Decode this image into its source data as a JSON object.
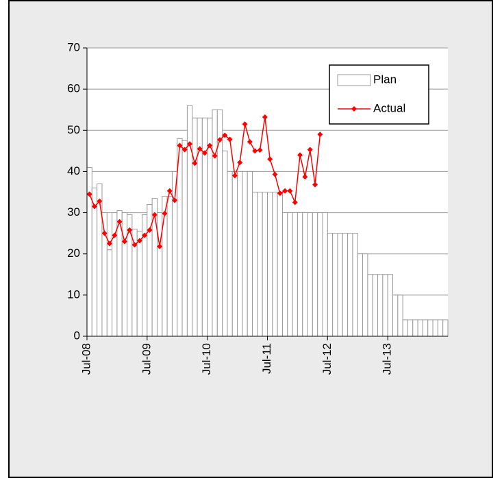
{
  "chart_data": {
    "type": "bar_line",
    "categories": [
      "Jul-08",
      null,
      null,
      null,
      null,
      null,
      null,
      null,
      null,
      null,
      null,
      null,
      "Jul-09",
      null,
      null,
      null,
      null,
      null,
      null,
      null,
      null,
      null,
      null,
      null,
      "Jul-10",
      null,
      null,
      null,
      null,
      null,
      null,
      null,
      null,
      null,
      null,
      null,
      "Jul-11",
      null,
      null,
      null,
      null,
      null,
      null,
      null,
      null,
      null,
      null,
      null,
      "Jul-12",
      null,
      null,
      null,
      null,
      null,
      null,
      null,
      null,
      null,
      null,
      null,
      "Jul-13",
      null,
      null,
      null,
      null,
      null,
      null,
      null,
      null,
      null,
      null,
      null
    ],
    "series": [
      {
        "name": "Plan",
        "type": "bar",
        "color": "#999999",
        "values": [
          41,
          36,
          37,
          30,
          21,
          30,
          30.5,
          30,
          29.5,
          26,
          25.5,
          29.5,
          32,
          33.5,
          30,
          34,
          34,
          40,
          48,
          47.5,
          56,
          53,
          53,
          53,
          53,
          55,
          55,
          45,
          40,
          40,
          40,
          40,
          40,
          35,
          35,
          35,
          35,
          35,
          35,
          30,
          30,
          30,
          30,
          30,
          30,
          30,
          30,
          30,
          25,
          25,
          25,
          25,
          25,
          25,
          20,
          20,
          15,
          15,
          15,
          15,
          15,
          10,
          10,
          4,
          4,
          4,
          4,
          4,
          4,
          4,
          4,
          4
        ]
      },
      {
        "name": "Actual",
        "type": "line",
        "color": "#ff0000",
        "values": [
          34.5,
          31.5,
          32.8,
          25,
          22.5,
          24.5,
          27.8,
          23,
          25.8,
          22.2,
          23.2,
          24.5,
          25.8,
          29.5,
          21.8,
          29.8,
          35.3,
          33,
          46.3,
          45.3,
          46.7,
          42,
          45.5,
          44.5,
          46.3,
          43.8,
          47.7,
          48.8,
          47.8,
          39,
          42.2,
          51.5,
          47.2,
          45,
          45.2,
          53.2,
          43,
          39.3,
          34.7,
          35.3,
          35.3,
          32.5,
          44,
          38.7,
          45.3,
          36.8,
          49,
          null,
          null,
          null,
          null,
          null,
          null,
          null,
          null,
          null,
          null,
          null,
          null,
          null,
          null,
          null,
          null,
          null,
          null,
          null,
          null,
          null,
          null,
          null,
          null,
          null
        ]
      }
    ],
    "ylim": [
      0,
      70
    ],
    "yticks": [
      0,
      10,
      20,
      30,
      40,
      50,
      60,
      70
    ],
    "grid": true,
    "legend": "upper right"
  }
}
